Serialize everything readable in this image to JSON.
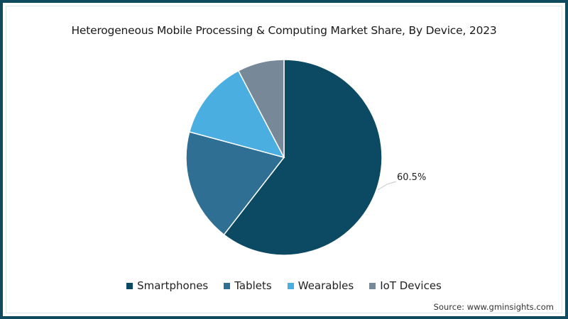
{
  "chart_data": {
    "type": "pie",
    "title": "Heterogeneous Mobile Processing & Computing Market Share, By Device, 2023",
    "categories": [
      "Smartphones",
      "Tablets",
      "Wearables",
      "IoT Devices"
    ],
    "values": [
      60.5,
      18.7,
      13.1,
      7.7
    ],
    "colors": [
      "#0b4a62",
      "#2e6f93",
      "#4aaee0",
      "#778899"
    ],
    "data_labels": [
      {
        "category": "Smartphones",
        "text": "60.5%"
      }
    ],
    "legend_position": "bottom",
    "start_angle_deg": 0,
    "direction": "clockwise"
  },
  "title": "Heterogeneous Mobile Processing & Computing Market Share, By Device, 2023",
  "legend": [
    {
      "label": "Smartphones",
      "color": "#0b4a62"
    },
    {
      "label": "Tablets",
      "color": "#2e6f93"
    },
    {
      "label": "Wearables",
      "color": "#4aaee0"
    },
    {
      "label": "IoT Devices",
      "color": "#778899"
    }
  ],
  "data_label": "60.5%",
  "source": "Source: www.gminsights.com",
  "frame_color": "#0f4a5f"
}
